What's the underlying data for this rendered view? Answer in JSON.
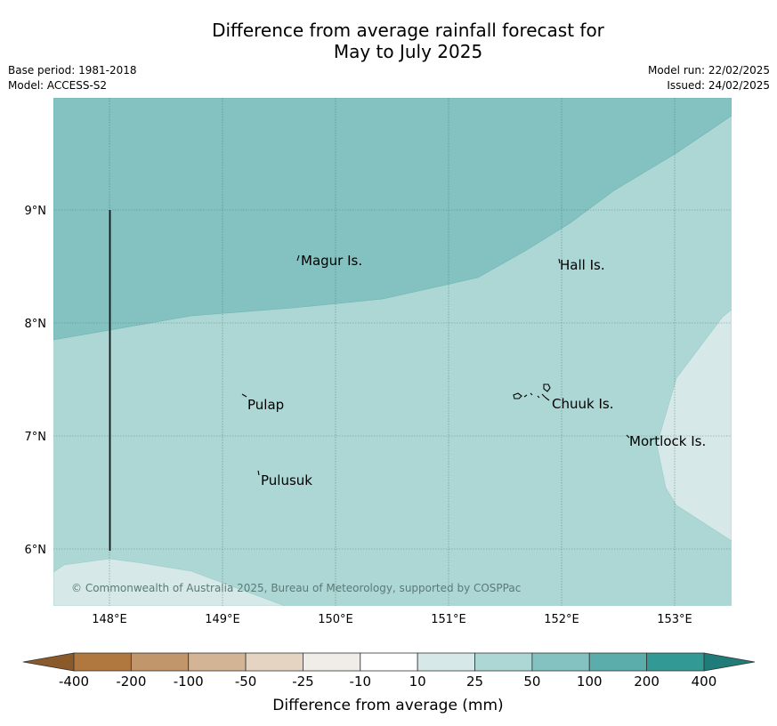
{
  "title": {
    "line1": "Difference from average rainfall forecast for",
    "line2": "May to July 2025"
  },
  "meta": {
    "base_period": "Base period: 1981-2018",
    "model": "Model: ACCESS-S2",
    "model_run": "Model run: 22/02/2025",
    "issued": "Issued: 24/02/2025"
  },
  "axes": {
    "x_ticks": [
      "148°E",
      "149°E",
      "150°E",
      "151°E",
      "152°E",
      "153°E"
    ],
    "y_ticks": [
      "9°N",
      "8°N",
      "7°N",
      "6°N"
    ]
  },
  "places": [
    {
      "name": "Magur Is."
    },
    {
      "name": "Hall Is."
    },
    {
      "name": "Pulap"
    },
    {
      "name": "Chuuk Is."
    },
    {
      "name": "Mortlock Is."
    },
    {
      "name": "Pulusuk"
    }
  ],
  "copyright": "© Commonwealth of Australia 2025, Bureau of Meteorology, supported by COSPPac",
  "colorbar": {
    "labels": [
      "-400",
      "-200",
      "-100",
      "-50",
      "-25",
      "-10",
      "10",
      "25",
      "50",
      "100",
      "200",
      "400"
    ],
    "colors": [
      "#b0773e",
      "#c2966b",
      "#d3b596",
      "#e5d4c2",
      "#f0ede8",
      "#ffffff",
      "#d6e9e8",
      "#add7d5",
      "#83c2c0",
      "#5aadaa",
      "#329995",
      "#1f7c78",
      "#8a5a2b"
    ],
    "title": "Difference from average (mm)"
  },
  "zone_colors": {
    "band_50_100": "#83c2c0",
    "band_25_50": "#add7d5",
    "band_10_25": "#d6e9e8"
  }
}
